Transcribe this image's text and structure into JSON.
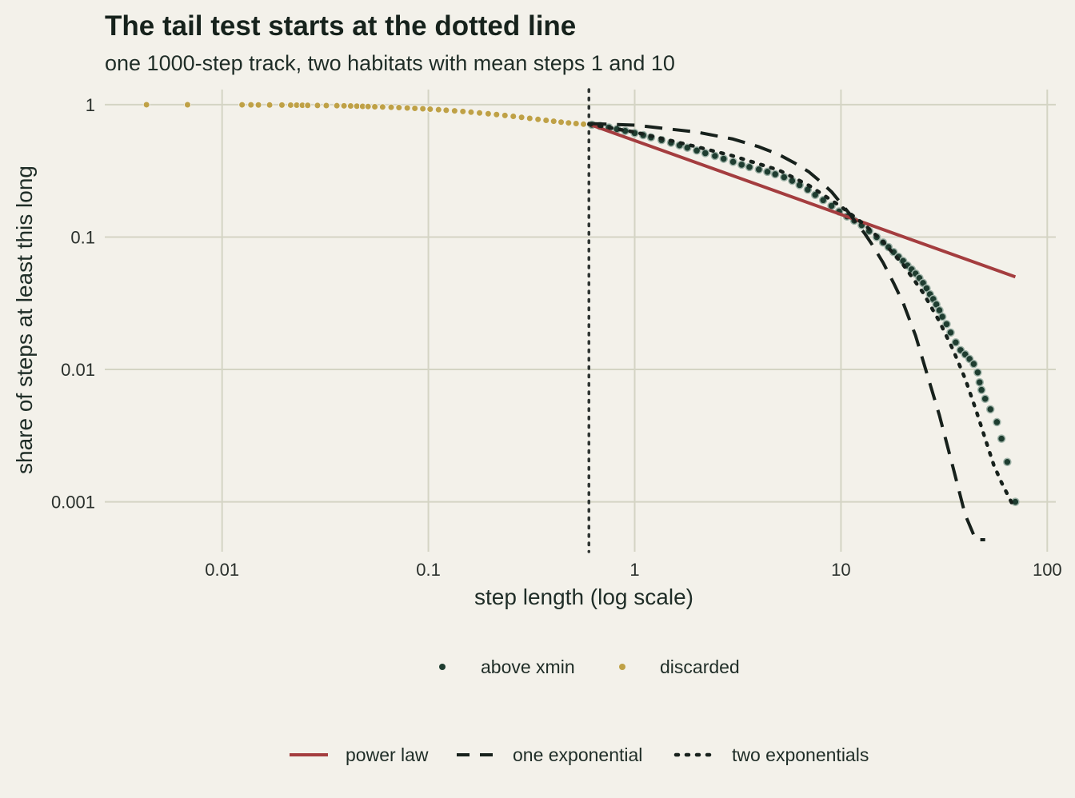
{
  "chart_data": {
    "type": "scatter",
    "title": "The tail test starts at the dotted line",
    "subtitle": "one 1000-step track, two habitats with mean steps 1 and 10",
    "xlabel": "step length (log scale)",
    "ylabel": "share of steps at least this long",
    "x_scale": "log",
    "y_scale": "log",
    "xlim": [
      0.0027,
      110
    ],
    "ylim": [
      0.00042,
      1.3
    ],
    "x_ticks": [
      {
        "value": 0.01,
        "label": "0.01"
      },
      {
        "value": 0.1,
        "label": "0.1"
      },
      {
        "value": 1,
        "label": "1"
      },
      {
        "value": 10,
        "label": "10"
      },
      {
        "value": 100,
        "label": "100"
      }
    ],
    "y_ticks": [
      {
        "value": 1,
        "label": "1"
      },
      {
        "value": 0.1,
        "label": "0.1"
      },
      {
        "value": 0.01,
        "label": "0.01"
      },
      {
        "value": 0.001,
        "label": "0.001"
      }
    ],
    "grid": true,
    "xmin_line": {
      "value": 0.6,
      "style": "dotted"
    },
    "point_series": [
      {
        "name": "discarded",
        "color": "#bfa146",
        "points": [
          [
            0.0043,
            0.999
          ],
          [
            0.0068,
            0.998
          ],
          [
            0.0125,
            0.997
          ],
          [
            0.0138,
            0.996
          ],
          [
            0.015,
            0.995
          ],
          [
            0.017,
            0.994
          ],
          [
            0.0195,
            0.993
          ],
          [
            0.0215,
            0.992
          ],
          [
            0.023,
            0.991
          ],
          [
            0.0245,
            0.99
          ],
          [
            0.026,
            0.988
          ],
          [
            0.029,
            0.986
          ],
          [
            0.032,
            0.984
          ],
          [
            0.036,
            0.982
          ],
          [
            0.039,
            0.98
          ],
          [
            0.042,
            0.977
          ],
          [
            0.045,
            0.974
          ],
          [
            0.048,
            0.971
          ],
          [
            0.051,
            0.968
          ],
          [
            0.055,
            0.964
          ],
          [
            0.06,
            0.96
          ],
          [
            0.066,
            0.955
          ],
          [
            0.072,
            0.95
          ],
          [
            0.079,
            0.944
          ],
          [
            0.086,
            0.938
          ],
          [
            0.094,
            0.931
          ],
          [
            0.102,
            0.924
          ],
          [
            0.112,
            0.916
          ],
          [
            0.122,
            0.907
          ],
          [
            0.134,
            0.898
          ],
          [
            0.147,
            0.888
          ],
          [
            0.161,
            0.877
          ],
          [
            0.177,
            0.866
          ],
          [
            0.195,
            0.854
          ],
          [
            0.214,
            0.842
          ],
          [
            0.235,
            0.829
          ],
          [
            0.258,
            0.816
          ],
          [
            0.283,
            0.802
          ],
          [
            0.31,
            0.788
          ],
          [
            0.34,
            0.774
          ],
          [
            0.372,
            0.761
          ],
          [
            0.405,
            0.749
          ],
          [
            0.44,
            0.738
          ],
          [
            0.478,
            0.728
          ],
          [
            0.52,
            0.72
          ],
          [
            0.565,
            0.712
          ]
        ]
      },
      {
        "name": "above xmin",
        "color": "#1e3d30",
        "points": [
          [
            0.62,
            0.705
          ],
          [
            0.68,
            0.69
          ],
          [
            0.75,
            0.672
          ],
          [
            0.82,
            0.653
          ],
          [
            0.9,
            0.633
          ],
          [
            1.0,
            0.61
          ],
          [
            1.1,
            0.588
          ],
          [
            1.2,
            0.566
          ],
          [
            1.35,
            0.54
          ],
          [
            1.5,
            0.515
          ],
          [
            1.65,
            0.493
          ],
          [
            1.8,
            0.473
          ],
          [
            2.0,
            0.45
          ],
          [
            2.2,
            0.43
          ],
          [
            2.45,
            0.41
          ],
          [
            2.7,
            0.39
          ],
          [
            3.0,
            0.37
          ],
          [
            3.3,
            0.352
          ],
          [
            3.6,
            0.338
          ],
          [
            4.0,
            0.324
          ],
          [
            4.4,
            0.311
          ],
          [
            4.8,
            0.298
          ],
          [
            5.3,
            0.283
          ],
          [
            5.8,
            0.266
          ],
          [
            6.3,
            0.247
          ],
          [
            6.9,
            0.228
          ],
          [
            7.5,
            0.208
          ],
          [
            8.2,
            0.19
          ],
          [
            9.0,
            0.172
          ],
          [
            9.8,
            0.156
          ],
          [
            10.7,
            0.143
          ],
          [
            11.6,
            0.133
          ],
          [
            12.6,
            0.123
          ],
          [
            13.7,
            0.111
          ],
          [
            14.9,
            0.1
          ],
          [
            16.0,
            0.091
          ],
          [
            17.0,
            0.084
          ],
          [
            18.0,
            0.077
          ],
          [
            19.0,
            0.071
          ],
          [
            20.0,
            0.066
          ],
          [
            21.0,
            0.061
          ],
          [
            22.0,
            0.057
          ],
          [
            23.0,
            0.053
          ],
          [
            24.0,
            0.049
          ],
          [
            25.0,
            0.045
          ],
          [
            26.0,
            0.041
          ],
          [
            27.0,
            0.037
          ],
          [
            28.0,
            0.034
          ],
          [
            29.0,
            0.031
          ],
          [
            30.0,
            0.028
          ],
          [
            31.0,
            0.025
          ],
          [
            32.5,
            0.022
          ],
          [
            34.0,
            0.019
          ],
          [
            36.0,
            0.016
          ],
          [
            38.0,
            0.014
          ],
          [
            40.0,
            0.013
          ],
          [
            42.0,
            0.012
          ],
          [
            44.0,
            0.011
          ],
          [
            46.0,
            0.0095
          ],
          [
            47.0,
            0.008
          ],
          [
            48.0,
            0.007
          ],
          [
            50.0,
            0.006
          ],
          [
            53.0,
            0.005
          ],
          [
            57.0,
            0.004
          ],
          [
            60.0,
            0.003
          ],
          [
            64.0,
            0.002
          ],
          [
            70.0,
            0.001
          ]
        ]
      }
    ],
    "line_series": [
      {
        "name": "power law",
        "color": "#a43d3f",
        "style": "solid",
        "points": [
          [
            0.6,
            0.712
          ],
          [
            70.0,
            0.05
          ]
        ]
      },
      {
        "name": "one exponential",
        "color": "#17211c",
        "style": "dashed",
        "points": [
          [
            0.6,
            0.72
          ],
          [
            1.0,
            0.7
          ],
          [
            2.0,
            0.62
          ],
          [
            3.0,
            0.55
          ],
          [
            4.0,
            0.48
          ],
          [
            5.0,
            0.42
          ],
          [
            6.0,
            0.36
          ],
          [
            7.0,
            0.31
          ],
          [
            8.0,
            0.26
          ],
          [
            9.0,
            0.22
          ],
          [
            10.0,
            0.18
          ],
          [
            11.0,
            0.15
          ],
          [
            12.0,
            0.125
          ],
          [
            13.0,
            0.107
          ],
          [
            14.0,
            0.09
          ],
          [
            16.0,
            0.064
          ],
          [
            18.0,
            0.045
          ],
          [
            20.0,
            0.032
          ],
          [
            23.0,
            0.018
          ],
          [
            26.0,
            0.0095
          ],
          [
            30.0,
            0.0045
          ],
          [
            35.0,
            0.0018
          ],
          [
            40.0,
            0.0008
          ],
          [
            45.0,
            0.0004
          ],
          [
            50.0,
            0.0002
          ]
        ]
      },
      {
        "name": "two exponentials",
        "color": "#17211c",
        "style": "dotted",
        "points": [
          [
            0.6,
            0.712
          ],
          [
            1.0,
            0.62
          ],
          [
            2.0,
            0.48
          ],
          [
            3.0,
            0.41
          ],
          [
            5.0,
            0.32
          ],
          [
            7.0,
            0.245
          ],
          [
            10.0,
            0.17
          ],
          [
            13.0,
            0.124
          ],
          [
            16.0,
            0.092
          ],
          [
            20.0,
            0.062
          ],
          [
            25.0,
            0.038
          ],
          [
            30.0,
            0.023
          ],
          [
            35.0,
            0.014
          ],
          [
            40.0,
            0.0085
          ],
          [
            45.0,
            0.005
          ],
          [
            50.0,
            0.003
          ],
          [
            55.0,
            0.0019
          ],
          [
            60.0,
            0.0014
          ],
          [
            68.0,
            0.00095
          ]
        ]
      }
    ],
    "legend_points": [
      {
        "name": "above xmin",
        "color": "#1e3d30"
      },
      {
        "name": "discarded",
        "color": "#bfa146"
      }
    ],
    "legend_lines": [
      {
        "name": "power law",
        "color": "#a43d3f",
        "style": "solid"
      },
      {
        "name": "one exponential",
        "color": "#17211c",
        "style": "dashed"
      },
      {
        "name": "two exponentials",
        "color": "#17211c",
        "style": "dotted"
      }
    ],
    "legend_position": "bottom"
  }
}
